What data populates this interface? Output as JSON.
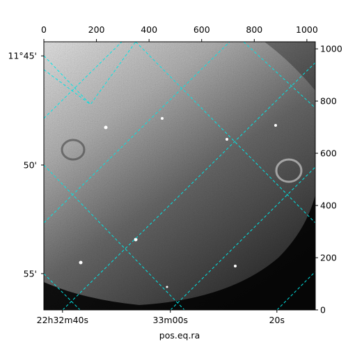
{
  "chart_data": {
    "type": "image",
    "xlabel": "pos.eq.ra",
    "xlim": [
      0,
      1032
    ],
    "ylim": [
      0,
      1027
    ],
    "xticks": [
      0,
      200,
      400,
      600,
      800,
      1000
    ],
    "yticks": [
      0,
      200,
      400,
      600,
      800,
      1000
    ],
    "ra_ticks": [
      {
        "value": 71,
        "label": "22h32m40s"
      },
      {
        "value": 481,
        "label": "33m00s"
      },
      {
        "value": 886,
        "label": "20s"
      }
    ],
    "dec_ticks": [
      {
        "value": 973,
        "label": "11°45'"
      },
      {
        "value": 555,
        "label": "50'"
      },
      {
        "value": 139,
        "label": "55'"
      }
    ],
    "grid": true,
    "grid_color": "#00e5e5"
  }
}
